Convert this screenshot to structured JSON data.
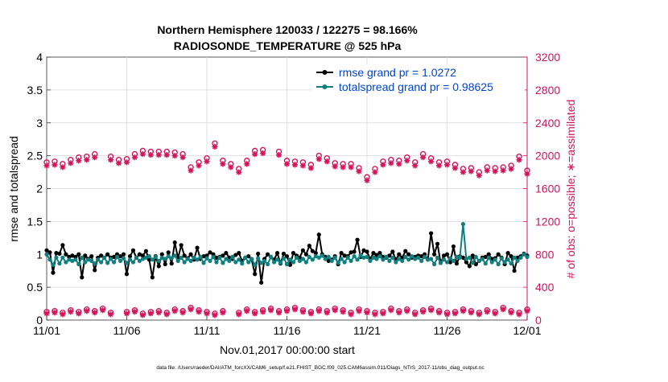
{
  "chart_data": {
    "type": "line",
    "title_line1": "Northern Hemisphere 120033 / 122275 = 98.166%",
    "title_line2": "RADIOSONDE_TEMPERATURE @ 525 hPa",
    "xlabel": "Nov.01,2017 00:00:00 start",
    "ylabel_left": "rmse and totalspread",
    "ylabel_right": "# of obs: o=possible; ∗=assimilated",
    "footer": "data file: /Users/raeder/DAI/ATM_forcXX/CAM6_setup/f.e21.FHIST_BGC.f09_025.CAM6assim.011/Diags_NTrS_2017-11/obs_diag_output.nc",
    "x_range": [
      0,
      30
    ],
    "x_ticks": [
      0,
      5,
      10,
      15,
      20,
      25,
      30
    ],
    "x_tick_labels": [
      "11/01",
      "11/06",
      "11/11",
      "11/16",
      "11/21",
      "11/26",
      "12/01"
    ],
    "y_left_range": [
      0,
      4
    ],
    "y_left_ticks": [
      "0",
      "0.5",
      "1",
      "1.5",
      "2",
      "2.5",
      "3",
      "3.5",
      "4"
    ],
    "y_right_range": [
      0,
      3200
    ],
    "y_right_ticks": [
      "0",
      "400",
      "800",
      "1200",
      "1600",
      "2000",
      "2400",
      "2800",
      "3200"
    ],
    "colors": {
      "rmse": "#000000",
      "spread": "#0f8080",
      "obs": "#d4145a",
      "legend_text": "#0044cc"
    },
    "legend": [
      {
        "name": "rmse",
        "label": "rmse grand pr = 1.0272"
      },
      {
        "name": "spread",
        "label": "totalspread grand pr = 0.98625"
      }
    ],
    "rmse": [
      1.06,
      1.03,
      0.72,
      1.02,
      1.01,
      1.14,
      1.0,
      0.96,
      0.98,
      0.96,
      1.0,
      0.65,
      0.98,
      0.93,
      0.97,
      0.76,
      0.95,
      0.98,
      0.95,
      1.0,
      0.95,
      0.96,
      1.0,
      0.97,
      1.0,
      0.7,
      0.97,
      1.06,
      0.95,
      1.0,
      0.98,
      1.05,
      0.92,
      0.65,
      0.97,
      0.82,
      1.0,
      0.85,
      1.03,
      0.86,
      1.18,
      0.94,
      1.14,
      0.98,
      0.94,
      1.0,
      0.92,
      1.1,
      0.93,
      0.97,
      0.98,
      1.03,
      1.0,
      0.95,
      0.96,
      0.98,
      1.02,
      0.95,
      0.93,
      0.99,
      1.02,
      0.9,
      0.95,
      0.97,
      0.92,
      0.7,
      1.01,
      0.57,
      0.93,
      1.0,
      0.96,
      0.92,
      1.02,
      0.86,
      1.01,
      0.97,
      0.84,
      1.02,
      0.98,
      0.95,
      1.06,
      1.0,
      1.13,
      1.05,
      1.02,
      1.3,
      1.0,
      0.96,
      0.9,
      0.92,
      0.97,
      0.85,
      1.02,
      0.98,
      0.97,
      1.03,
      1.04,
      1.22,
      0.96,
      1.06,
      1.04,
      0.93,
      1.02,
      0.99,
      1.02,
      0.96,
      0.95,
      0.98,
      1.04,
      0.92,
      1.0,
      0.95,
      1.05,
      1.0,
      0.95,
      0.96,
      0.98,
      0.97,
      1.0,
      0.92,
      1.32,
      1.0,
      1.16,
      0.87,
      0.98,
      1.0,
      0.88,
      1.12,
      0.86,
      0.97,
      0.95,
      0.88,
      0.82,
      0.98,
      0.85,
      0.9,
      0.95,
      0.96,
      1.0,
      0.93,
      0.94,
      1.0,
      0.95,
      0.85,
      1.02,
      0.97,
      0.75,
      0.95,
      0.97,
      1.01,
      0.98
    ],
    "spread": [
      1.0,
      0.92,
      0.84,
      0.95,
      0.86,
      0.95,
      0.88,
      0.92,
      0.9,
      0.92,
      0.85,
      0.95,
      0.88,
      0.92,
      0.9,
      0.86,
      0.92,
      0.88,
      0.95,
      0.87,
      0.93,
      0.88,
      0.96,
      0.9,
      0.94,
      0.87,
      0.92,
      0.88,
      0.95,
      0.9,
      0.93,
      0.95,
      0.97,
      0.92,
      0.96,
      0.9,
      0.95,
      0.93,
      0.97,
      0.94,
      0.98,
      0.9,
      0.95,
      0.88,
      0.93,
      0.9,
      0.95,
      0.92,
      0.96,
      0.87,
      0.94,
      0.9,
      0.96,
      0.88,
      0.95,
      0.87,
      0.93,
      0.9,
      0.96,
      0.88,
      0.92,
      0.86,
      0.95,
      0.88,
      0.93,
      0.84,
      0.94,
      0.87,
      0.9,
      0.85,
      0.96,
      0.88,
      0.92,
      0.87,
      0.94,
      0.85,
      0.92,
      0.88,
      0.95,
      0.9,
      0.93,
      0.88,
      0.96,
      0.92,
      0.97,
      0.95,
      0.98,
      0.93,
      0.96,
      0.9,
      0.95,
      0.87,
      0.93,
      0.88,
      0.95,
      0.9,
      0.97,
      0.92,
      0.98,
      0.95,
      0.96,
      0.9,
      0.95,
      0.93,
      0.97,
      0.92,
      0.96,
      0.9,
      0.95,
      0.88,
      0.93,
      0.9,
      0.96,
      0.92,
      0.97,
      0.93,
      0.95,
      0.9,
      0.96,
      0.92,
      0.93,
      0.85,
      0.95,
      0.87,
      0.92,
      0.88,
      0.94,
      0.9,
      0.96,
      0.95,
      1.46,
      0.93,
      0.95,
      0.87,
      0.96,
      0.9,
      0.93,
      0.86,
      0.95,
      0.88,
      0.92,
      0.85,
      0.94,
      0.88,
      0.92,
      0.86,
      0.95,
      0.9,
      0.95,
      1.0,
      0.96
    ],
    "obs_possible_pairs": [
      [
        0.0,
        1920
      ],
      [
        0.5,
        1930
      ],
      [
        1.0,
        1900
      ],
      [
        1.5,
        1950
      ],
      [
        2.0,
        1980
      ],
      [
        2.5,
        1990
      ],
      [
        3.0,
        2020
      ],
      [
        4.0,
        1990
      ],
      [
        4.5,
        1950
      ],
      [
        5.0,
        1960
      ],
      [
        5.5,
        2020
      ],
      [
        6.0,
        2060
      ],
      [
        6.5,
        2050
      ],
      [
        7.0,
        2050
      ],
      [
        7.5,
        2050
      ],
      [
        8.0,
        2040
      ],
      [
        8.5,
        2020
      ],
      [
        9.0,
        1860
      ],
      [
        9.5,
        1920
      ],
      [
        10.0,
        1970
      ],
      [
        10.5,
        2150
      ],
      [
        11.0,
        1940
      ],
      [
        11.5,
        1900
      ],
      [
        12.0,
        1840
      ],
      [
        12.5,
        1940
      ],
      [
        13.0,
        2060
      ],
      [
        13.5,
        2070
      ],
      [
        14.5,
        2050
      ],
      [
        15.0,
        1940
      ],
      [
        15.5,
        1930
      ],
      [
        16.0,
        1920
      ],
      [
        16.5,
        1890
      ],
      [
        17.0,
        2000
      ],
      [
        17.5,
        1970
      ],
      [
        18.0,
        1910
      ],
      [
        18.5,
        1900
      ],
      [
        19.0,
        1900
      ],
      [
        19.5,
        1850
      ],
      [
        20.0,
        1740
      ],
      [
        20.5,
        1840
      ],
      [
        21.0,
        1930
      ],
      [
        21.5,
        1950
      ],
      [
        22.0,
        1940
      ],
      [
        22.5,
        1980
      ],
      [
        23.0,
        1920
      ],
      [
        23.5,
        2020
      ],
      [
        24.0,
        1970
      ],
      [
        24.5,
        1920
      ],
      [
        25.0,
        1930
      ],
      [
        25.5,
        1890
      ],
      [
        26.0,
        1840
      ],
      [
        26.5,
        1850
      ],
      [
        27.0,
        1800
      ],
      [
        27.5,
        1860
      ],
      [
        28.0,
        1850
      ],
      [
        28.5,
        1860
      ],
      [
        29.0,
        1880
      ],
      [
        29.5,
        1990
      ],
      [
        30.0,
        1820
      ]
    ],
    "obs_assimilated_pairs": [
      [
        0.0,
        1880
      ],
      [
        0.5,
        1890
      ],
      [
        1.0,
        1860
      ],
      [
        1.5,
        1910
      ],
      [
        2.0,
        1940
      ],
      [
        2.5,
        1950
      ],
      [
        3.0,
        1980
      ],
      [
        4.0,
        1950
      ],
      [
        4.5,
        1910
      ],
      [
        5.0,
        1920
      ],
      [
        5.5,
        1980
      ],
      [
        6.0,
        2020
      ],
      [
        6.5,
        2010
      ],
      [
        7.0,
        2010
      ],
      [
        7.5,
        2010
      ],
      [
        8.0,
        2000
      ],
      [
        8.5,
        1980
      ],
      [
        9.0,
        1820
      ],
      [
        9.5,
        1880
      ],
      [
        10.0,
        1930
      ],
      [
        10.5,
        2110
      ],
      [
        11.0,
        1900
      ],
      [
        11.5,
        1860
      ],
      [
        12.0,
        1800
      ],
      [
        12.5,
        1900
      ],
      [
        13.0,
        2020
      ],
      [
        13.5,
        2030
      ],
      [
        14.5,
        2010
      ],
      [
        15.0,
        1900
      ],
      [
        15.5,
        1890
      ],
      [
        16.0,
        1880
      ],
      [
        16.5,
        1850
      ],
      [
        17.0,
        1960
      ],
      [
        17.5,
        1930
      ],
      [
        18.0,
        1870
      ],
      [
        18.5,
        1860
      ],
      [
        19.0,
        1860
      ],
      [
        19.5,
        1810
      ],
      [
        20.0,
        1700
      ],
      [
        20.5,
        1800
      ],
      [
        21.0,
        1890
      ],
      [
        21.5,
        1910
      ],
      [
        22.0,
        1900
      ],
      [
        22.5,
        1940
      ],
      [
        23.0,
        1880
      ],
      [
        23.5,
        1980
      ],
      [
        24.0,
        1930
      ],
      [
        24.5,
        1880
      ],
      [
        25.0,
        1890
      ],
      [
        25.5,
        1850
      ],
      [
        26.0,
        1800
      ],
      [
        26.5,
        1810
      ],
      [
        27.0,
        1760
      ],
      [
        27.5,
        1820
      ],
      [
        28.0,
        1810
      ],
      [
        28.5,
        1820
      ],
      [
        29.0,
        1840
      ],
      [
        29.5,
        1950
      ],
      [
        30.0,
        1780
      ]
    ],
    "obs_low_possible_pairs": [
      [
        0.0,
        100
      ],
      [
        0.5,
        110
      ],
      [
        1.0,
        90
      ],
      [
        1.5,
        120
      ],
      [
        2.0,
        100
      ],
      [
        2.5,
        130
      ],
      [
        3.0,
        110
      ],
      [
        3.5,
        140
      ],
      [
        4.0,
        90
      ],
      [
        5.0,
        100
      ],
      [
        5.5,
        120
      ],
      [
        6.0,
        80
      ],
      [
        6.5,
        100
      ],
      [
        7.0,
        110
      ],
      [
        7.5,
        90
      ],
      [
        8.0,
        130
      ],
      [
        8.5,
        110
      ],
      [
        9.0,
        150
      ],
      [
        9.5,
        120
      ],
      [
        10.0,
        100
      ],
      [
        10.5,
        80
      ],
      [
        11.0,
        110
      ],
      [
        12.0,
        90
      ],
      [
        12.5,
        130
      ],
      [
        13.0,
        100
      ],
      [
        13.5,
        120
      ],
      [
        14.0,
        140
      ],
      [
        14.5,
        110
      ],
      [
        15.0,
        130
      ],
      [
        15.5,
        150
      ],
      [
        16.0,
        120
      ],
      [
        16.5,
        100
      ],
      [
        17.0,
        130
      ],
      [
        17.5,
        110
      ],
      [
        18.0,
        140
      ],
      [
        18.5,
        120
      ],
      [
        19.0,
        90
      ],
      [
        19.5,
        130
      ],
      [
        20.0,
        110
      ],
      [
        20.5,
        90
      ],
      [
        21.0,
        100
      ],
      [
        21.5,
        140
      ],
      [
        22.0,
        110
      ],
      [
        22.5,
        130
      ],
      [
        23.0,
        90
      ],
      [
        23.5,
        120
      ],
      [
        24.0,
        140
      ],
      [
        24.5,
        110
      ],
      [
        25.0,
        90
      ],
      [
        25.5,
        100
      ],
      [
        26.0,
        130
      ],
      [
        26.5,
        110
      ],
      [
        27.0,
        90
      ],
      [
        27.5,
        120
      ],
      [
        28.0,
        100
      ],
      [
        28.5,
        150
      ],
      [
        29.0,
        110
      ],
      [
        29.5,
        90
      ],
      [
        30.0,
        130
      ]
    ],
    "obs_low_assimilated_pairs": [
      [
        0.0,
        80
      ],
      [
        0.5,
        90
      ],
      [
        1.0,
        70
      ],
      [
        1.5,
        100
      ],
      [
        2.0,
        80
      ],
      [
        2.5,
        110
      ],
      [
        3.0,
        90
      ],
      [
        3.5,
        120
      ],
      [
        4.0,
        70
      ],
      [
        5.0,
        80
      ],
      [
        5.5,
        100
      ],
      [
        6.0,
        60
      ],
      [
        6.5,
        80
      ],
      [
        7.0,
        90
      ],
      [
        7.5,
        70
      ],
      [
        8.0,
        110
      ],
      [
        8.5,
        90
      ],
      [
        9.0,
        130
      ],
      [
        9.5,
        100
      ],
      [
        10.0,
        80
      ],
      [
        10.5,
        60
      ],
      [
        11.0,
        90
      ],
      [
        12.0,
        70
      ],
      [
        12.5,
        110
      ],
      [
        13.0,
        80
      ],
      [
        13.5,
        100
      ],
      [
        14.0,
        120
      ],
      [
        14.5,
        90
      ],
      [
        15.0,
        110
      ],
      [
        15.5,
        130
      ],
      [
        16.0,
        100
      ],
      [
        16.5,
        80
      ],
      [
        17.0,
        110
      ],
      [
        17.5,
        90
      ],
      [
        18.0,
        120
      ],
      [
        18.5,
        100
      ],
      [
        19.0,
        70
      ],
      [
        19.5,
        110
      ],
      [
        20.0,
        90
      ],
      [
        20.5,
        70
      ],
      [
        21.0,
        80
      ],
      [
        21.5,
        120
      ],
      [
        22.0,
        90
      ],
      [
        22.5,
        110
      ],
      [
        23.0,
        70
      ],
      [
        23.5,
        100
      ],
      [
        24.0,
        120
      ],
      [
        24.5,
        90
      ],
      [
        25.0,
        70
      ],
      [
        25.5,
        80
      ],
      [
        26.0,
        110
      ],
      [
        26.5,
        90
      ],
      [
        27.0,
        70
      ],
      [
        27.5,
        100
      ],
      [
        28.0,
        80
      ],
      [
        28.5,
        130
      ],
      [
        29.0,
        90
      ],
      [
        29.5,
        70
      ],
      [
        30.0,
        110
      ]
    ]
  }
}
